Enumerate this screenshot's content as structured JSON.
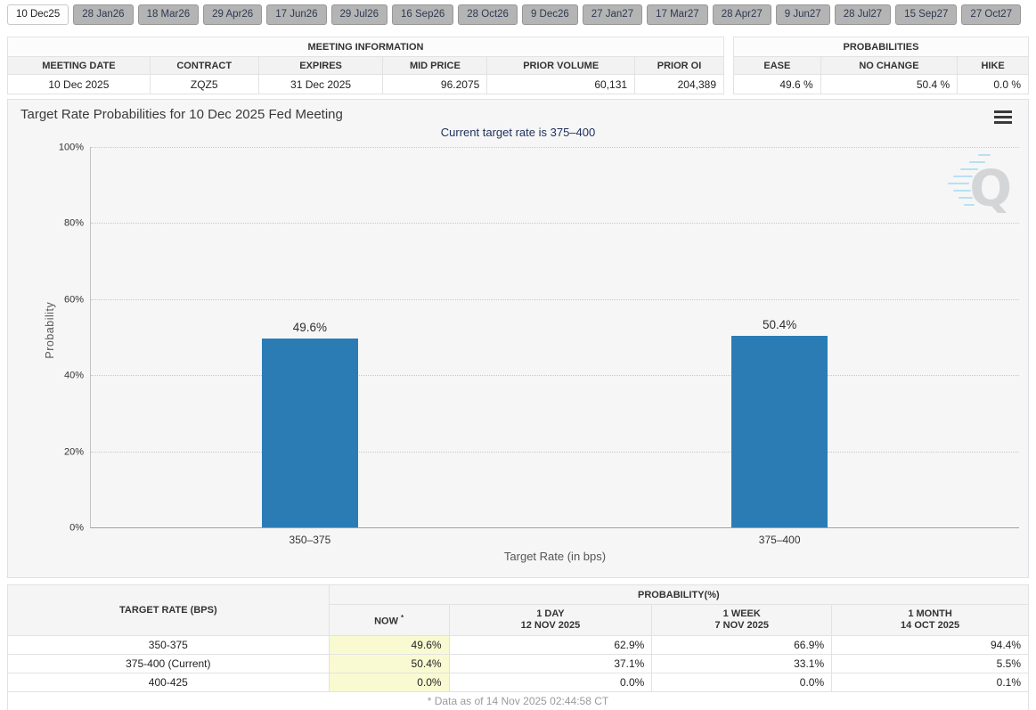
{
  "tabs": {
    "selected": "10 Dec25",
    "items": [
      "10 Dec25",
      "28 Jan26",
      "18 Mar26",
      "29 Apr26",
      "17 Jun26",
      "29 Jul26",
      "16 Sep26",
      "28 Oct26",
      "9 Dec26",
      "27 Jan27",
      "17 Mar27",
      "28 Apr27",
      "9 Jun27",
      "28 Jul27",
      "15 Sep27",
      "27 Oct27"
    ]
  },
  "meeting_info": {
    "title": "MEETING INFORMATION",
    "columns": [
      "MEETING DATE",
      "CONTRACT",
      "EXPIRES",
      "MID PRICE",
      "PRIOR VOLUME",
      "PRIOR OI"
    ],
    "row": [
      "10 Dec 2025",
      "ZQZ5",
      "31 Dec 2025",
      "96.2075",
      "60,131",
      "204,389"
    ]
  },
  "probabilities_summary": {
    "title": "PROBABILITIES",
    "columns": [
      "EASE",
      "NO CHANGE",
      "HIKE"
    ],
    "row": [
      "49.6 %",
      "50.4 %",
      "0.0 %"
    ]
  },
  "chart": {
    "title": "Target Rate Probabilities for 10 Dec 2025 Fed Meeting",
    "subtitle": "Current target rate is 375–400",
    "menu_icon": "hamburger-menu-icon",
    "watermark_letter": "Q"
  },
  "chart_data": {
    "type": "bar",
    "title": "Target Rate Probabilities for 10 Dec 2025 Fed Meeting",
    "subtitle": "Current target rate is 375–400",
    "categories": [
      "350–375",
      "375–400"
    ],
    "values": [
      49.6,
      50.4
    ],
    "value_labels": [
      "49.6%",
      "50.4%"
    ],
    "xlabel": "Target Rate (in bps)",
    "ylabel": "Probability",
    "ylim": [
      0,
      100
    ],
    "ytick_labels": [
      "100%",
      "80%",
      "60%",
      "40%",
      "20%",
      "0%"
    ],
    "grid": "horizontal-dotted",
    "legend": "none",
    "bar_color": "#2b7cb5"
  },
  "history_table": {
    "title_col": "TARGET RATE (BPS)",
    "prob_header": "PROBABILITY(%)",
    "now_header": "NOW",
    "now_star": "*",
    "cols": [
      {
        "line1": "1 DAY",
        "line2": "12 NOV 2025"
      },
      {
        "line1": "1 WEEK",
        "line2": "7 NOV 2025"
      },
      {
        "line1": "1 MONTH",
        "line2": "14 OCT 2025"
      }
    ],
    "rows": [
      {
        "rate": "350-375",
        "now": "49.6%",
        "d1": "62.9%",
        "w1": "66.9%",
        "m1": "94.4%"
      },
      {
        "rate": "375-400 (Current)",
        "now": "50.4%",
        "d1": "37.1%",
        "w1": "33.1%",
        "m1": "5.5%"
      },
      {
        "rate": "400-425",
        "now": "0.0%",
        "d1": "0.0%",
        "w1": "0.0%",
        "m1": "0.1%"
      }
    ],
    "footnote": "* Data as of 14 Nov 2025 02:44:58 CT"
  }
}
